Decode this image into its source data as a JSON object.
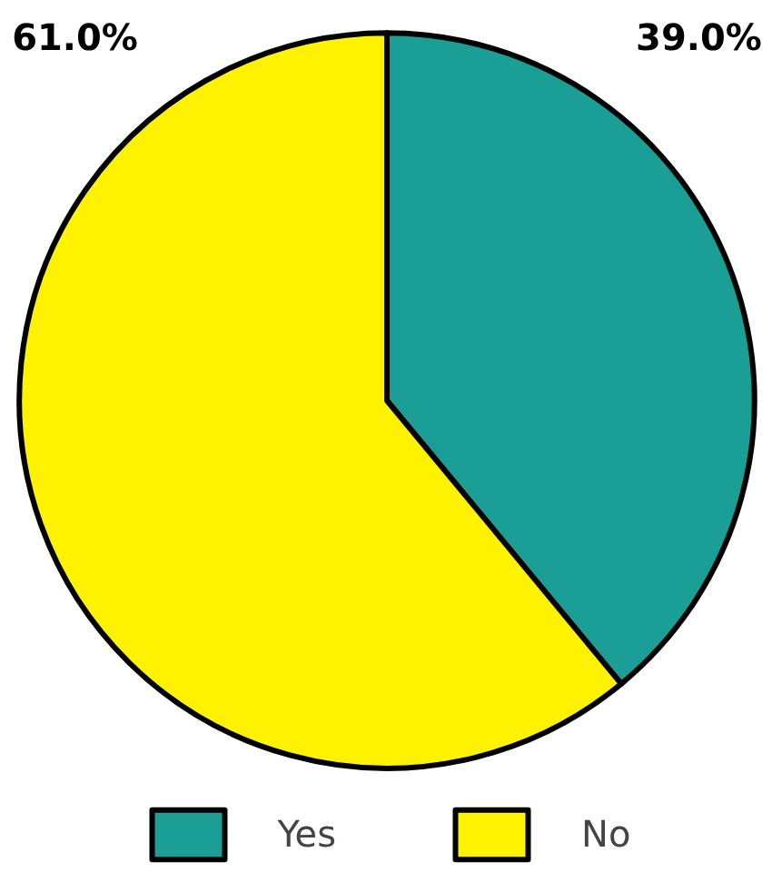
{
  "chart_data": {
    "type": "pie",
    "categories": [
      "Yes",
      "No"
    ],
    "values": [
      39.0,
      61.0
    ],
    "colors": [
      "#1a9e96",
      "#fff200"
    ],
    "value_labels": [
      "39.0%",
      "61.0%"
    ],
    "legend": "bottom"
  }
}
